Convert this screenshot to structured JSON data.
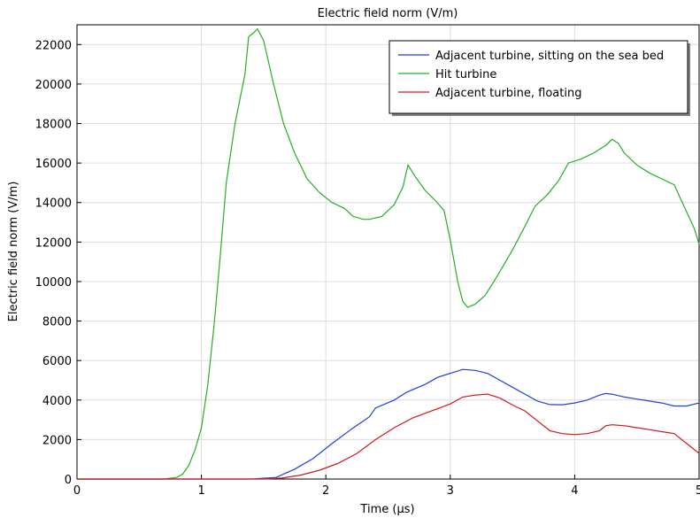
{
  "chart_data": {
    "type": "line",
    "title": "Electric field norm (V/m)",
    "xlabel": "Time (µs)",
    "ylabel": "Electric field norm (V/m)",
    "xlim": [
      0,
      5
    ],
    "ylim": [
      0,
      23000
    ],
    "xticks": [
      0,
      1,
      2,
      3,
      4,
      5
    ],
    "yticks": [
      0,
      2000,
      4000,
      6000,
      8000,
      10000,
      12000,
      14000,
      16000,
      18000,
      20000,
      22000
    ],
    "grid": true,
    "legend_position": "top-right",
    "series": [
      {
        "name": "Adjacent turbine, sitting on the sea bed",
        "color": "#1f3fe0",
        "points": [
          [
            0,
            0
          ],
          [
            1.4,
            0
          ],
          [
            1.6,
            80
          ],
          [
            1.75,
            500
          ],
          [
            1.9,
            1050
          ],
          [
            2.05,
            1800
          ],
          [
            2.2,
            2500
          ],
          [
            2.35,
            3150
          ],
          [
            2.4,
            3600
          ],
          [
            2.55,
            4000
          ],
          [
            2.65,
            4400
          ],
          [
            2.8,
            4800
          ],
          [
            2.9,
            5150
          ],
          [
            3.05,
            5450
          ],
          [
            3.1,
            5550
          ],
          [
            3.2,
            5500
          ],
          [
            3.3,
            5350
          ],
          [
            3.4,
            5000
          ],
          [
            3.5,
            4650
          ],
          [
            3.6,
            4300
          ],
          [
            3.7,
            3950
          ],
          [
            3.8,
            3770
          ],
          [
            3.9,
            3760
          ],
          [
            4.0,
            3850
          ],
          [
            4.1,
            4000
          ],
          [
            4.2,
            4250
          ],
          [
            4.25,
            4330
          ],
          [
            4.3,
            4300
          ],
          [
            4.4,
            4150
          ],
          [
            4.5,
            4050
          ],
          [
            4.6,
            3950
          ],
          [
            4.7,
            3850
          ],
          [
            4.8,
            3700
          ],
          [
            4.9,
            3700
          ],
          [
            5.0,
            3850
          ]
        ]
      },
      {
        "name": "Hit turbine",
        "color": "#22b022",
        "points": [
          [
            0,
            0
          ],
          [
            0.7,
            0
          ],
          [
            0.8,
            80
          ],
          [
            0.85,
            250
          ],
          [
            0.9,
            700
          ],
          [
            0.95,
            1500
          ],
          [
            1.0,
            2600
          ],
          [
            1.05,
            4700
          ],
          [
            1.1,
            7700
          ],
          [
            1.15,
            11200
          ],
          [
            1.2,
            15000
          ],
          [
            1.27,
            18000
          ],
          [
            1.35,
            20500
          ],
          [
            1.38,
            22400
          ],
          [
            1.42,
            22600
          ],
          [
            1.45,
            22800
          ],
          [
            1.5,
            22200
          ],
          [
            1.58,
            20000
          ],
          [
            1.66,
            18000
          ],
          [
            1.75,
            16500
          ],
          [
            1.85,
            15200
          ],
          [
            1.95,
            14500
          ],
          [
            2.05,
            14000
          ],
          [
            2.15,
            13700
          ],
          [
            2.22,
            13300
          ],
          [
            2.3,
            13150
          ],
          [
            2.35,
            13150
          ],
          [
            2.45,
            13300
          ],
          [
            2.55,
            13900
          ],
          [
            2.62,
            14800
          ],
          [
            2.66,
            15900
          ],
          [
            2.72,
            15300
          ],
          [
            2.8,
            14600
          ],
          [
            2.88,
            14100
          ],
          [
            2.95,
            13600
          ],
          [
            3.0,
            12100
          ],
          [
            3.06,
            10000
          ],
          [
            3.1,
            9000
          ],
          [
            3.14,
            8700
          ],
          [
            3.2,
            8850
          ],
          [
            3.28,
            9300
          ],
          [
            3.38,
            10300
          ],
          [
            3.5,
            11600
          ],
          [
            3.6,
            12800
          ],
          [
            3.68,
            13800
          ],
          [
            3.78,
            14400
          ],
          [
            3.87,
            15100
          ],
          [
            3.95,
            16000
          ],
          [
            4.05,
            16200
          ],
          [
            4.15,
            16500
          ],
          [
            4.25,
            16900
          ],
          [
            4.3,
            17200
          ],
          [
            4.35,
            17000
          ],
          [
            4.4,
            16500
          ],
          [
            4.5,
            15900
          ],
          [
            4.6,
            15500
          ],
          [
            4.7,
            15200
          ],
          [
            4.8,
            14900
          ],
          [
            4.88,
            13800
          ],
          [
            4.96,
            12700
          ],
          [
            5.0,
            11900
          ]
        ]
      },
      {
        "name": "Adjacent turbine, floating",
        "color": "#d01818",
        "points": [
          [
            0,
            0
          ],
          [
            1.5,
            0
          ],
          [
            1.65,
            50
          ],
          [
            1.8,
            200
          ],
          [
            1.95,
            450
          ],
          [
            2.1,
            800
          ],
          [
            2.25,
            1300
          ],
          [
            2.4,
            2000
          ],
          [
            2.55,
            2600
          ],
          [
            2.7,
            3100
          ],
          [
            2.85,
            3450
          ],
          [
            3.0,
            3800
          ],
          [
            3.1,
            4150
          ],
          [
            3.2,
            4250
          ],
          [
            3.3,
            4300
          ],
          [
            3.4,
            4100
          ],
          [
            3.5,
            3750
          ],
          [
            3.6,
            3450
          ],
          [
            3.7,
            2950
          ],
          [
            3.8,
            2450
          ],
          [
            3.9,
            2300
          ],
          [
            4.0,
            2250
          ],
          [
            4.1,
            2300
          ],
          [
            4.2,
            2450
          ],
          [
            4.25,
            2700
          ],
          [
            4.3,
            2750
          ],
          [
            4.4,
            2700
          ],
          [
            4.5,
            2600
          ],
          [
            4.6,
            2500
          ],
          [
            4.7,
            2400
          ],
          [
            4.8,
            2300
          ],
          [
            4.9,
            1800
          ],
          [
            5.0,
            1300
          ]
        ]
      }
    ]
  }
}
